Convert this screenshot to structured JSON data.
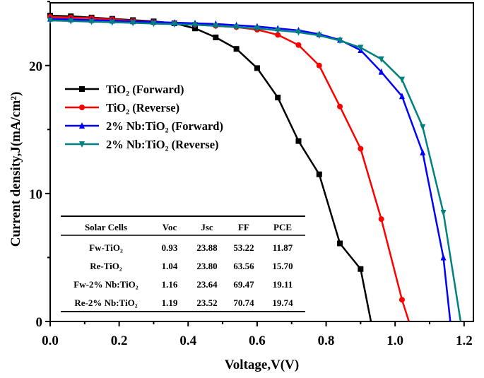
{
  "chart_data": {
    "type": "line",
    "xlabel": "Voltage,V(V)",
    "ylabel": "Current density,J(mA/cm²)",
    "xlim": [
      0,
      1.227
    ],
    "ylim": [
      0,
      24.9
    ],
    "xticks": [
      "0.0",
      "0.2",
      "0.4",
      "0.6",
      "0.8",
      "1.0",
      "1.2"
    ],
    "xtick_values": [
      0,
      0.2,
      0.4,
      0.6,
      0.8,
      1.0,
      1.2
    ],
    "yticks": [
      "0",
      "10",
      "20"
    ],
    "ytick_values": [
      0,
      10,
      20
    ],
    "grid": false,
    "legend_placement": "upper-left",
    "series": [
      {
        "name": "TiO₂ (Forward)",
        "color": "#000000",
        "marker": "square",
        "x": [
          0,
          0.06,
          0.12,
          0.18,
          0.24,
          0.3,
          0.36,
          0.42,
          0.48,
          0.54,
          0.6,
          0.66,
          0.72,
          0.78,
          0.84,
          0.9,
          0.93
        ],
        "y": [
          23.9,
          23.85,
          23.75,
          23.65,
          23.55,
          23.45,
          23.3,
          22.9,
          22.2,
          21.3,
          19.8,
          17.5,
          14.1,
          11.5,
          6.1,
          4.1,
          0
        ]
      },
      {
        "name": "TiO₂ (Reverse)",
        "color": "#ff0000",
        "marker": "circle",
        "x": [
          0,
          0.06,
          0.12,
          0.18,
          0.24,
          0.3,
          0.36,
          0.42,
          0.48,
          0.54,
          0.6,
          0.66,
          0.72,
          0.78,
          0.84,
          0.9,
          0.96,
          1.02,
          1.04
        ],
        "y": [
          23.8,
          23.75,
          23.7,
          23.6,
          23.5,
          23.4,
          23.3,
          23.2,
          23.1,
          23.0,
          22.8,
          22.4,
          21.6,
          20.0,
          16.8,
          13.5,
          8.0,
          1.7,
          0
        ]
      },
      {
        "name": "2% Nb:TiO₂ (Forward)",
        "color": "#0000ff",
        "marker": "triangle-up",
        "x": [
          0,
          0.06,
          0.12,
          0.18,
          0.24,
          0.3,
          0.36,
          0.42,
          0.48,
          0.54,
          0.6,
          0.66,
          0.72,
          0.78,
          0.84,
          0.9,
          0.96,
          1.02,
          1.08,
          1.14,
          1.16
        ],
        "y": [
          23.65,
          23.6,
          23.55,
          23.5,
          23.45,
          23.4,
          23.35,
          23.3,
          23.25,
          23.15,
          23.05,
          22.9,
          22.75,
          22.45,
          22.0,
          21.2,
          19.5,
          17.6,
          13.2,
          5.0,
          0
        ]
      },
      {
        "name": "2% Nb:TiO₂ (Reverse)",
        "color": "#008080",
        "marker": "triangle-down",
        "x": [
          0,
          0.06,
          0.12,
          0.18,
          0.24,
          0.3,
          0.36,
          0.42,
          0.48,
          0.54,
          0.6,
          0.66,
          0.72,
          0.78,
          0.84,
          0.9,
          0.96,
          1.02,
          1.08,
          1.14,
          1.19
        ],
        "y": [
          23.52,
          23.48,
          23.43,
          23.38,
          23.33,
          23.28,
          23.23,
          23.18,
          23.1,
          23.0,
          22.9,
          22.75,
          22.6,
          22.35,
          21.95,
          21.4,
          20.5,
          18.9,
          15.2,
          8.5,
          0
        ]
      }
    ],
    "table": {
      "headers": [
        "Solar Cells",
        "Voc",
        "Jsc",
        "FF",
        "PCE"
      ],
      "rows": [
        [
          "Fw-TiO₂",
          "0.93",
          "23.88",
          "53.22",
          "11.87"
        ],
        [
          "Re-TiO₂",
          "1.04",
          "23.80",
          "63.56",
          "15.70"
        ],
        [
          "Fw-2% Nb:TiO₂",
          "1.16",
          "23.64",
          "69.47",
          "19.11"
        ],
        [
          "Re-2% Nb:TiO₂",
          "1.19",
          "23.52",
          "70.74",
          "19.74"
        ]
      ]
    }
  }
}
